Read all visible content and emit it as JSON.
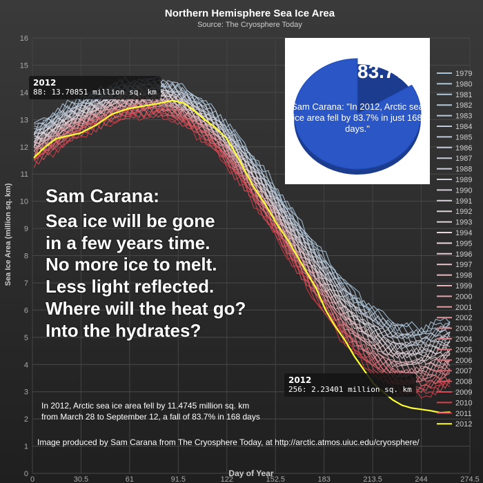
{
  "chart_data": {
    "type": "line",
    "title": "Northern Hemisphere Sea Ice Area",
    "subtitle": "Source: The Cryosphere Today",
    "xlabel": "Day of Year",
    "ylabel": "Sea Ice Area (million sq. km)",
    "xlim": [
      0,
      274.5
    ],
    "ylim": [
      0,
      16
    ],
    "x_ticks": [
      "0",
      "30.5",
      "61",
      "91.5",
      "122",
      "152.5",
      "183",
      "213.5",
      "244",
      "274.5"
    ],
    "y_ticks": [
      "0",
      "1",
      "2",
      "3",
      "4",
      "5",
      "6",
      "7",
      "8",
      "9",
      "10",
      "11",
      "12",
      "13",
      "14",
      "15",
      "16"
    ],
    "grid": true,
    "legend_position": "right",
    "legend": [
      "1979",
      "1980",
      "1981",
      "1982",
      "1983",
      "1984",
      "1985",
      "1986",
      "1987",
      "1988",
      "1989",
      "1990",
      "1991",
      "1992",
      "1993",
      "1994",
      "1995",
      "1996",
      "1997",
      "1998",
      "1999",
      "2000",
      "2001",
      "2002",
      "2003",
      "2004",
      "2005",
      "2006",
      "2007",
      "2008",
      "2009",
      "2010",
      "2011",
      "2012"
    ],
    "series_2012": {
      "name": "2012",
      "x": [
        1,
        8,
        15,
        22,
        30,
        40,
        50,
        60,
        70,
        80,
        88,
        95,
        100,
        108,
        115,
        122,
        130,
        138,
        146,
        154,
        160,
        166,
        172,
        178,
        184,
        190,
        196,
        202,
        208,
        214,
        220,
        226,
        232,
        238,
        244,
        250,
        256,
        262
      ],
      "y": [
        11.6,
        12.0,
        12.3,
        12.4,
        12.5,
        12.8,
        13.2,
        13.4,
        13.5,
        13.6,
        13.7,
        13.6,
        13.4,
        13.0,
        12.7,
        12.3,
        11.5,
        10.6,
        9.9,
        9.1,
        8.6,
        8.0,
        7.4,
        6.8,
        6.0,
        5.4,
        4.9,
        4.3,
        3.8,
        3.3,
        3.0,
        2.7,
        2.5,
        2.4,
        2.35,
        2.3,
        2.23,
        2.25
      ]
    },
    "envelope_note": "Years 1979-2011 drawn as colored background lines"
  },
  "tooltips": {
    "start": {
      "year": "2012",
      "text": "88: 13.70851 million sq. km"
    },
    "end": {
      "year": "2012",
      "text": "256: 2.23401 million sq. km"
    }
  },
  "pie": {
    "percent_value": 83.7,
    "percent_label": "83.7%",
    "quote": "Sam Carana: \"In 2012, Arctic sea ice area fell by 83.7% in just 168 days.\"",
    "color": "#2a56c6"
  },
  "quote": {
    "heading": "Sam Carana:",
    "lines": [
      "Sea ice will be gone",
      "in a few years time.",
      "No more ice to melt.",
      "Less light reflected.",
      "Where will the heat go?",
      "Into the hydrates?"
    ]
  },
  "note": {
    "line1": "In 2012, Arctic sea ice area fell by 11.4745 million sq. km",
    "line2": "from March 28 to September 12, a fall of 83.7% in 168 days"
  },
  "credit": "Image produced by Sam Carana from The Cryosphere Today, at http://arctic.atmos.uiuc.edu/cryosphere/",
  "colors": {
    "highlight": "#ffff33",
    "early_years": "#a9c6dc",
    "late_years": "#d23a44"
  }
}
